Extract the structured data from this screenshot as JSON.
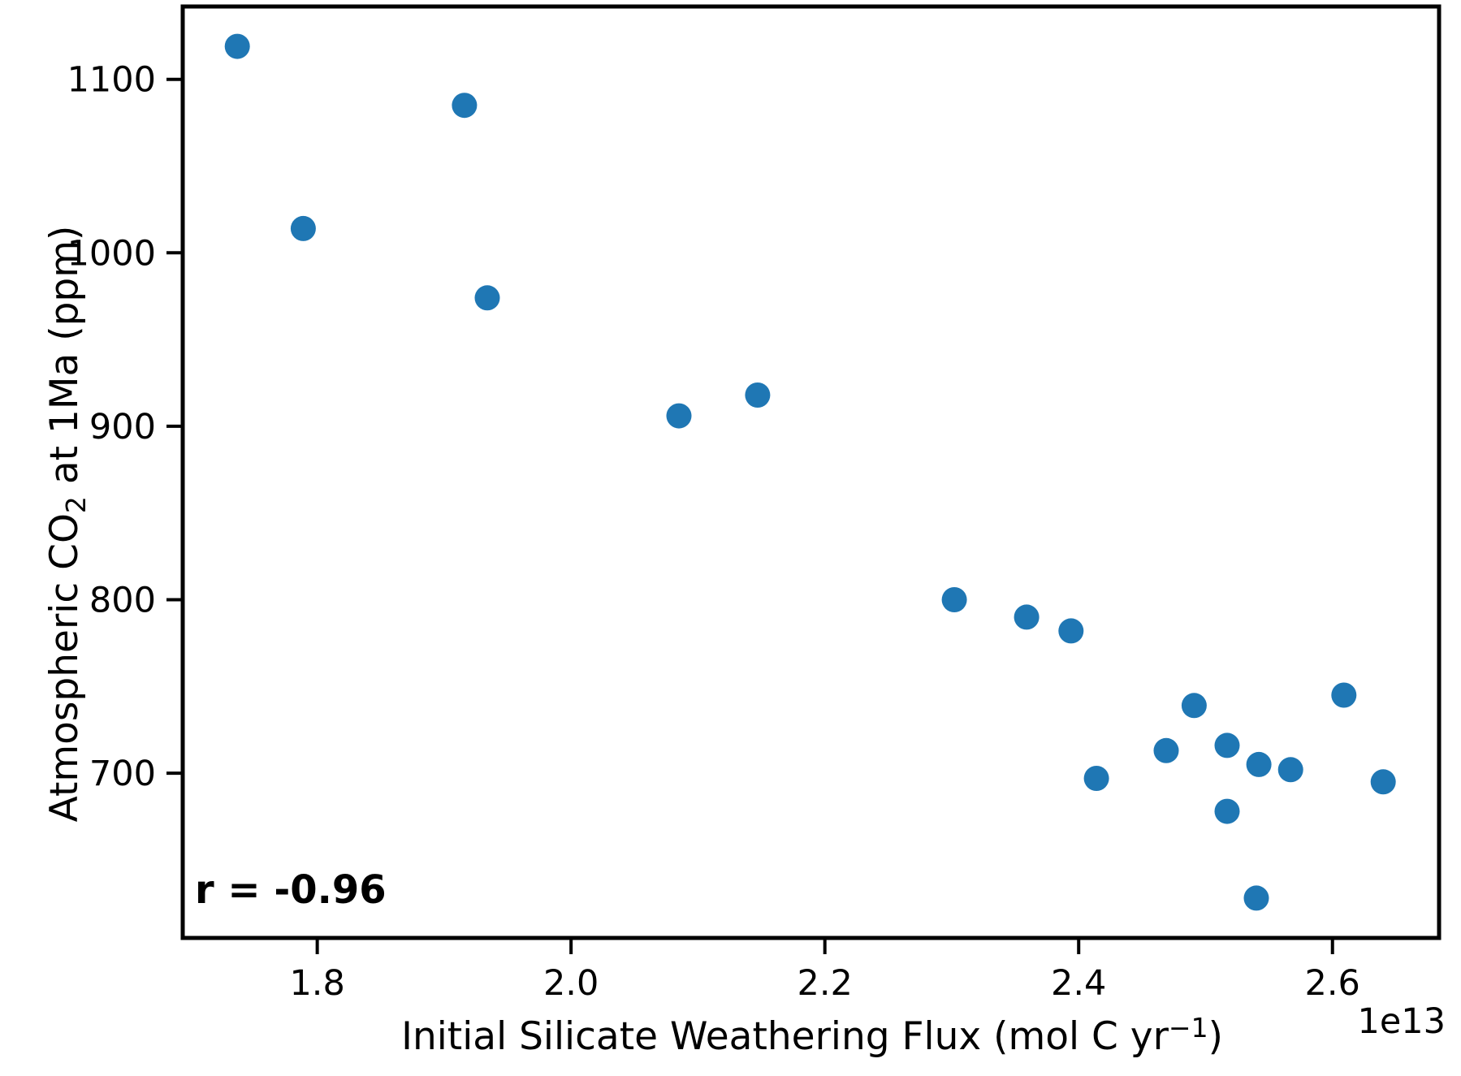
{
  "figure": {
    "background": "#ffffff"
  },
  "chart_data": {
    "type": "scatter",
    "title": "",
    "xlabel": "Initial Silicate Weathering Flux (mol C yr⁻¹)",
    "xlabel_parts": {
      "main": "Initial Silicate Weathering Flux (mol C yr",
      "superscript": "−1",
      "close": ")"
    },
    "ylabel": "Atmospheric CO₂ at 1Ma (ppm)",
    "ylabel_parts": {
      "pre": "Atmospheric CO",
      "subscript": "2",
      "post": " at 1Ma (ppm)"
    },
    "x_offset_label": "1e13",
    "annotation": "r = -0.96",
    "x_unit": "1e13 mol C yr-1",
    "xlim": [
      1.694,
      2.684
    ],
    "ylim": [
      605,
      1142
    ],
    "grid": false,
    "legend": null,
    "x_ticks": [
      {
        "value": 1.8,
        "label": "1.8"
      },
      {
        "value": 2.0,
        "label": "2.0"
      },
      {
        "value": 2.2,
        "label": "2.2"
      },
      {
        "value": 2.4,
        "label": "2.4"
      },
      {
        "value": 2.6,
        "label": "2.6"
      }
    ],
    "y_ticks": [
      {
        "value": 1100,
        "label": "1100"
      },
      {
        "value": 1000,
        "label": "1000"
      },
      {
        "value": 900,
        "label": "900"
      },
      {
        "value": 800,
        "label": "800"
      },
      {
        "value": 700,
        "label": "700"
      }
    ],
    "points": [
      {
        "x": 1.737,
        "y": 1119
      },
      {
        "x": 1.789,
        "y": 1014
      },
      {
        "x": 1.916,
        "y": 1085
      },
      {
        "x": 1.934,
        "y": 974
      },
      {
        "x": 2.085,
        "y": 906
      },
      {
        "x": 2.147,
        "y": 918
      },
      {
        "x": 2.302,
        "y": 800
      },
      {
        "x": 2.359,
        "y": 790
      },
      {
        "x": 2.394,
        "y": 782
      },
      {
        "x": 2.414,
        "y": 697
      },
      {
        "x": 2.469,
        "y": 713
      },
      {
        "x": 2.491,
        "y": 739
      },
      {
        "x": 2.517,
        "y": 716
      },
      {
        "x": 2.517,
        "y": 678
      },
      {
        "x": 2.54,
        "y": 628
      },
      {
        "x": 2.542,
        "y": 705
      },
      {
        "x": 2.567,
        "y": 702
      },
      {
        "x": 2.609,
        "y": 745
      },
      {
        "x": 2.64,
        "y": 695
      }
    ],
    "colors": {
      "point": "#1f77b4",
      "text": "#000000",
      "spine": "#000000",
      "background": "#ffffff"
    }
  }
}
